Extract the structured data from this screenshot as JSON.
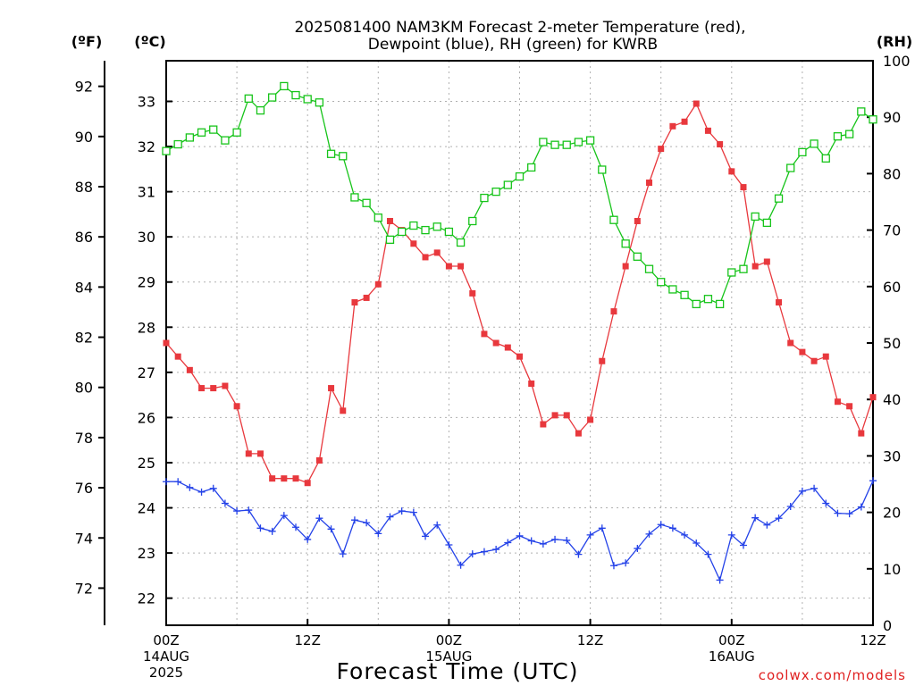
{
  "chart_data": {
    "type": "line",
    "title_lines": [
      "2025081400 NAM3KM Forecast 2-meter Temperature (red),",
      "Dewpoint (blue), RH (green) for KWRB"
    ],
    "xlabel": "Forecast Time (UTC)",
    "credit": "coolwx.com/models",
    "units": {
      "fahrenheit": "(ºF)",
      "celsius": "(ºC)",
      "rh": "(RH)"
    },
    "x_range_hours": [
      0,
      60
    ],
    "x_ticks": [
      {
        "hour": 0,
        "lines": [
          "00Z",
          "14AUG",
          "2025"
        ]
      },
      {
        "hour": 12,
        "lines": [
          "12Z"
        ]
      },
      {
        "hour": 24,
        "lines": [
          "00Z",
          "15AUG"
        ]
      },
      {
        "hour": 36,
        "lines": [
          "12Z"
        ]
      },
      {
        "hour": 48,
        "lines": [
          "00Z",
          "16AUG"
        ]
      },
      {
        "hour": 60,
        "lines": [
          "12Z"
        ]
      }
    ],
    "celsius_axis": {
      "range": [
        21.4,
        33.9
      ],
      "ticks": [
        "22",
        "23",
        "24",
        "25",
        "26",
        "27",
        "28",
        "29",
        "30",
        "31",
        "32",
        "33"
      ]
    },
    "fahrenheit_axis": {
      "ticks": [
        "72",
        "74",
        "76",
        "78",
        "80",
        "82",
        "84",
        "86",
        "88",
        "90",
        "92"
      ]
    },
    "rh_axis": {
      "range": [
        0,
        100
      ],
      "ticks": [
        "0",
        "10",
        "20",
        "30",
        "40",
        "50",
        "60",
        "70",
        "80",
        "90",
        "100"
      ]
    },
    "grid": true,
    "series": [
      {
        "name": "Temperature",
        "color": "#e8383d",
        "axis": "celsius",
        "marker": "filled-square",
        "values": [
          27.65,
          27.35,
          27.05,
          26.65,
          26.65,
          26.7,
          26.25,
          25.2,
          25.2,
          24.65,
          24.65,
          24.65,
          24.55,
          25.05,
          26.65,
          26.15,
          28.55,
          28.65,
          28.95,
          30.35,
          30.15,
          29.85,
          29.55,
          29.65,
          29.35,
          29.35,
          28.75,
          27.85,
          27.65,
          27.55,
          27.35,
          26.75,
          25.85,
          26.05,
          26.05,
          25.65,
          25.95,
          27.25,
          28.35,
          29.35,
          30.35,
          31.2,
          31.95,
          32.45,
          32.55,
          32.95,
          32.35,
          32.05,
          31.45,
          31.1,
          29.35,
          29.45,
          28.55,
          27.65,
          27.45,
          27.25,
          27.35,
          26.35,
          26.25,
          25.65,
          26.45
        ]
      },
      {
        "name": "Dewpoint",
        "color": "#2442e8",
        "axis": "celsius",
        "marker": "plus",
        "values": [
          24.58,
          24.58,
          24.45,
          24.35,
          24.43,
          24.1,
          23.93,
          23.95,
          23.55,
          23.48,
          23.83,
          23.57,
          23.3,
          23.77,
          23.53,
          22.98,
          23.73,
          23.67,
          23.43,
          23.8,
          23.93,
          23.9,
          23.37,
          23.62,
          23.18,
          22.73,
          22.98,
          23.03,
          23.08,
          23.23,
          23.38,
          23.27,
          23.2,
          23.3,
          23.28,
          22.97,
          23.4,
          23.55,
          22.72,
          22.78,
          23.1,
          23.42,
          23.63,
          23.55,
          23.4,
          23.22,
          22.97,
          22.4,
          23.4,
          23.17,
          23.78,
          23.62,
          23.77,
          24.03,
          24.37,
          24.43,
          24.1,
          23.88,
          23.87,
          24.02,
          24.6
        ]
      },
      {
        "name": "RH",
        "color": "#17c41a",
        "axis": "rh",
        "marker": "open-square",
        "values": [
          84,
          85.2,
          86.4,
          87.3,
          87.8,
          85.9,
          87.3,
          93.3,
          91.2,
          93.5,
          95.5,
          93.9,
          93.2,
          92.6,
          83.5,
          83.1,
          75.8,
          74.8,
          72.2,
          68.3,
          69.7,
          70.8,
          70,
          70.6,
          69.7,
          67.8,
          71.6,
          75.7,
          76.8,
          78,
          79.5,
          81.1,
          85.6,
          85.1,
          85.1,
          85.6,
          85.9,
          80.7,
          71.8,
          67.6,
          65.3,
          63.1,
          60.8,
          59.5,
          58.5,
          56.9,
          57.8,
          56.9,
          62.5,
          63.1,
          72.4,
          71.3,
          75.6,
          81,
          83.8,
          85.3,
          82.7,
          86.6,
          87,
          91,
          89.6
        ]
      }
    ]
  }
}
